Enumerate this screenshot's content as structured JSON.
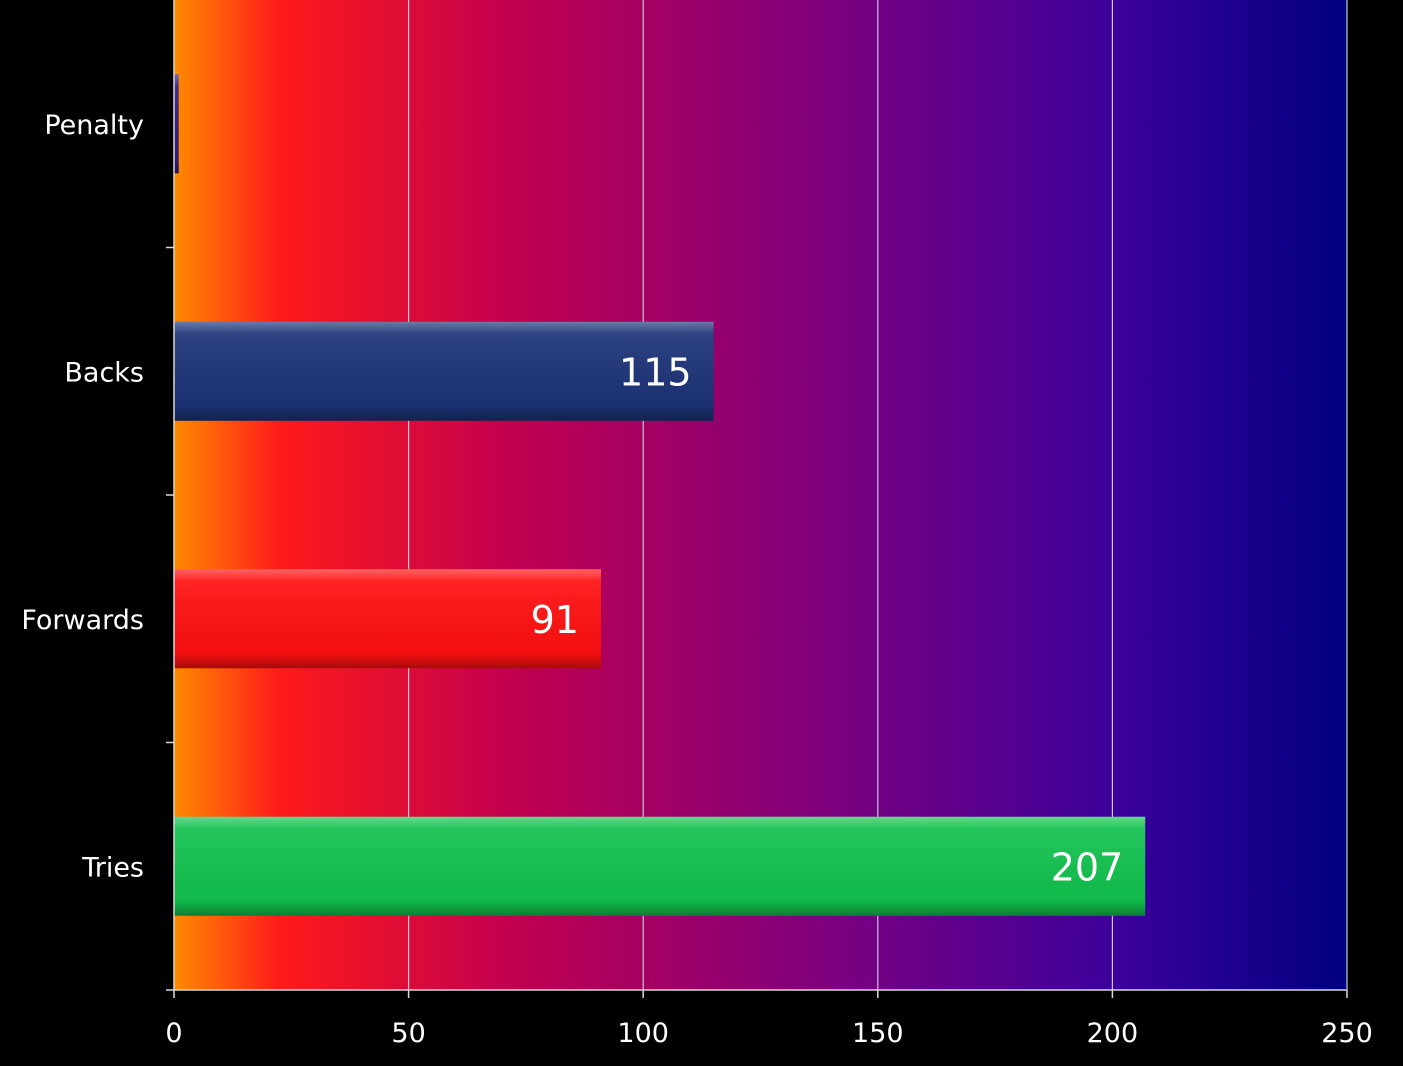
{
  "chart_data": {
    "type": "bar",
    "orientation": "horizontal",
    "categories": [
      "Penalty",
      "Backs",
      "Forwards",
      "Tries"
    ],
    "values": [
      1,
      115,
      91,
      207
    ],
    "data_labels": [
      "",
      "115",
      "91",
      "207"
    ],
    "bar_colors": [
      "#3a1a7a",
      "#1d3377",
      "#ff1010",
      "#12c24e"
    ],
    "xlim": [
      0,
      250
    ],
    "xticks": [
      0,
      50,
      100,
      150,
      200,
      250
    ],
    "xtick_labels": [
      "0",
      "50",
      "100",
      "150",
      "200",
      "250"
    ],
    "grid": "vertical",
    "legend": "none",
    "title": "",
    "xlabel": "",
    "ylabel": "",
    "background": {
      "page": "#000000",
      "plot_gradient": [
        "#ff8a00",
        "#ff1a1a",
        "#c4004e",
        "#7a0080",
        "#3d009b",
        "#000080"
      ],
      "gridline": "#c9c9d6"
    }
  }
}
